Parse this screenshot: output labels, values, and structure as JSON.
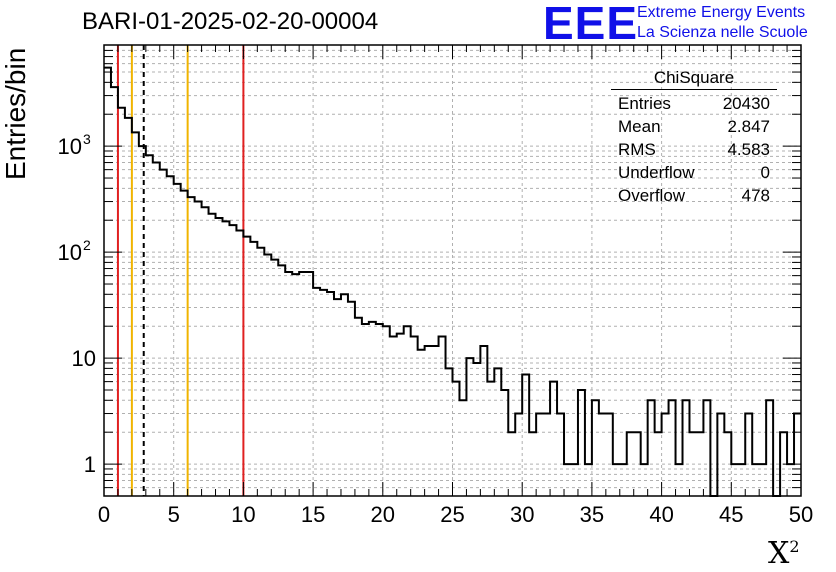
{
  "title": "BARI-01-2025-02-20-00004",
  "logo": {
    "text": "EEE",
    "line1": "Extreme Energy Events",
    "line2": "La Scienza nelle Scuole",
    "color": "#1010e8"
  },
  "stats": {
    "title": "ChiSquare",
    "rows": [
      {
        "label": "Entries",
        "value": "20430"
      },
      {
        "label": "Mean",
        "value": "2.847"
      },
      {
        "label": "RMS",
        "value": "4.583"
      },
      {
        "label": "Underflow",
        "value": "0"
      },
      {
        "label": "Overflow",
        "value": "478"
      }
    ]
  },
  "chart_data": {
    "type": "histogram",
    "xlabel": "X",
    "xlabel_sup": "2",
    "ylabel": "Entries/bin",
    "xlim": [
      0,
      50
    ],
    "ylim": [
      0.5,
      9000
    ],
    "yscale": "log",
    "grid": true,
    "bin_width": 0.5,
    "x_ticks": [
      0,
      5,
      10,
      15,
      20,
      25,
      30,
      35,
      40,
      45,
      50
    ],
    "y_ticks": [
      {
        "value": 1,
        "label": "1"
      },
      {
        "value": 10,
        "label": "10"
      },
      {
        "value": 100,
        "label": "10",
        "sup": "2"
      },
      {
        "value": 1000,
        "label": "10",
        "sup": "3"
      }
    ],
    "values": [
      5500,
      3600,
      2300,
      1850,
      1350,
      1000,
      820,
      700,
      600,
      520,
      440,
      380,
      330,
      300,
      265,
      230,
      210,
      195,
      180,
      160,
      140,
      125,
      110,
      95,
      85,
      75,
      65,
      62,
      65,
      65,
      46,
      44,
      42,
      36,
      40,
      34,
      24,
      21,
      22,
      21,
      20,
      16,
      17,
      20,
      16,
      12,
      13,
      13,
      16,
      8,
      6,
      4,
      10,
      9,
      13,
      6,
      8,
      5,
      2,
      3,
      7,
      2,
      3,
      3,
      6,
      3,
      1,
      1,
      5,
      1,
      4,
      3,
      3,
      1,
      1,
      2,
      2,
      1,
      4,
      2,
      3,
      4,
      1,
      4,
      2,
      2,
      4,
      0,
      3,
      2,
      1,
      1,
      3,
      1,
      1,
      4,
      0,
      2,
      1,
      3
    ],
    "vlines": [
      {
        "x": 1,
        "color": "#e02020",
        "style": "solid"
      },
      {
        "x": 2,
        "color": "#f0b400",
        "style": "solid"
      },
      {
        "x": 2.85,
        "color": "#000000",
        "style": "dashed"
      },
      {
        "x": 6,
        "color": "#f0b400",
        "style": "solid"
      },
      {
        "x": 10,
        "color": "#e02020",
        "style": "solid"
      }
    ]
  }
}
